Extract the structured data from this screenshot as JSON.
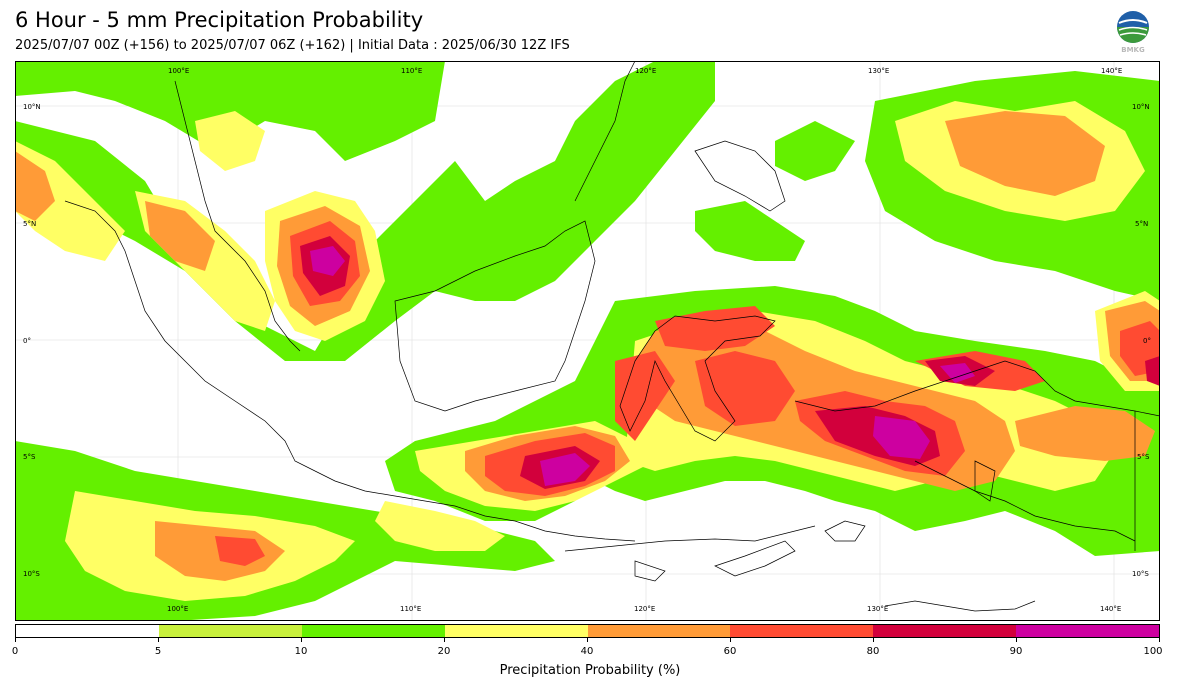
{
  "header": {
    "title": "6 Hour - 5 mm Precipitation Probability",
    "subtitle": "2025/07/07 00Z (+156) to 2025/07/07 06Z (+162) | Initial Data : 2025/06/30 12Z IFS"
  },
  "logo": {
    "icon": "bmkg-logo-icon",
    "text": "BMKG"
  },
  "map": {
    "lon_ticks_top": [
      "100°E",
      "110°E",
      "120°E",
      "130°E",
      "140°E"
    ],
    "lon_ticks_bottom": [
      "100°E",
      "110°E",
      "120°E",
      "130°E",
      "140°E"
    ],
    "lat_ticks_left": [
      "10°N",
      "5°N",
      "0°",
      "5°S",
      "10°S"
    ],
    "lat_ticks_right": [
      "10°N",
      "5°N",
      "0°",
      "5°S",
      "10°S"
    ]
  },
  "colorbar": {
    "label": "Precipitation Probability (%)",
    "ticks": [
      "0",
      "5",
      "10",
      "20",
      "40",
      "60",
      "80",
      "90",
      "100"
    ],
    "colors": [
      "#ffffff",
      "#c8f03c",
      "#64f000",
      "#ffff64",
      "#ff9b37",
      "#ff4b32",
      "#d2003c",
      "#cd00a0"
    ]
  }
}
